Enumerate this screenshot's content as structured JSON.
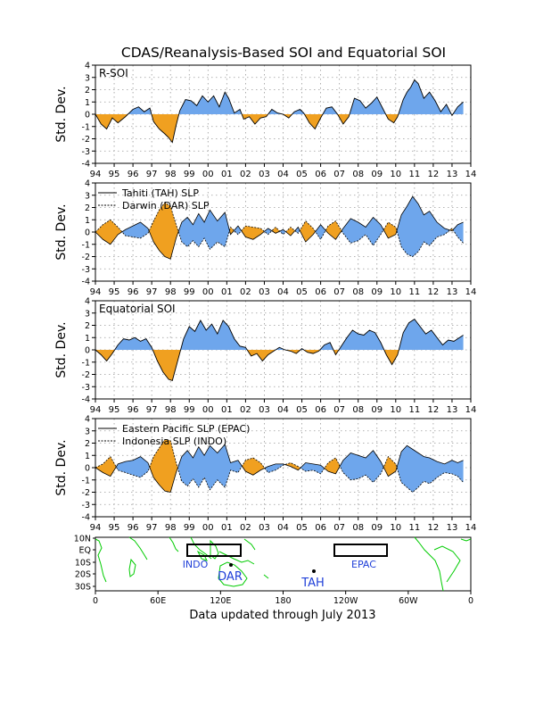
{
  "title": "CDAS/Reanalysis-Based SOI and Equatorial SOI",
  "footer": "Data updated through July 2013",
  "colors": {
    "positive": "#6ea6ec",
    "negative": "#f0a020",
    "grid": "#9a9a9a",
    "land": "#00cc00",
    "label_blue": "#1f3fd8"
  },
  "chart_data": [
    {
      "type": "area",
      "panel_label": "R-SOI",
      "ylabel": "Std. Dev.",
      "yticks": [
        "4",
        "3",
        "2",
        "1",
        "0",
        "-1",
        "-2",
        "-3",
        "-4"
      ],
      "xticks": [
        "94",
        "95",
        "96",
        "97",
        "98",
        "99",
        "00",
        "01",
        "02",
        "03",
        "04",
        "05",
        "06",
        "07",
        "08",
        "09",
        "10",
        "11",
        "12",
        "13",
        "14"
      ],
      "xlim": [
        1994,
        2014
      ],
      "ylim": [
        -4,
        4
      ],
      "grid": true,
      "series": [
        {
          "x": [
            1994.0,
            1994.3,
            1994.6,
            1994.9,
            1995.2,
            1995.6,
            1996.0,
            1996.3,
            1996.6,
            1996.9,
            1997.1,
            1997.4,
            1997.7,
            1997.9,
            1998.1,
            1998.3,
            1998.5,
            1998.8,
            1999.1,
            1999.4,
            1999.7,
            2000.0,
            2000.3,
            2000.6,
            2000.9,
            2001.1,
            2001.4,
            2001.7,
            2001.9,
            2002.2,
            2002.5,
            2002.8,
            2003.1,
            2003.4,
            2003.7,
            2004.0,
            2004.3,
            2004.6,
            2004.9,
            2005.1,
            2005.4,
            2005.7,
            2006.0,
            2006.3,
            2006.6,
            2006.9,
            2007.2,
            2007.5,
            2007.8,
            2008.1,
            2008.4,
            2008.7,
            2009.0,
            2009.3,
            2009.6,
            2009.9,
            2010.1,
            2010.4,
            2010.6,
            2010.8,
            2011.0,
            2011.2,
            2011.5,
            2011.8,
            2012.1,
            2012.4,
            2012.7,
            2013.0,
            2013.3,
            2013.6
          ],
          "y": [
            0,
            -0.8,
            -1.2,
            -0.3,
            -0.7,
            -0.2,
            0.4,
            0.6,
            0.2,
            0.5,
            -0.6,
            -1.2,
            -1.6,
            -1.9,
            -2.3,
            -0.9,
            0.3,
            1.2,
            1.1,
            0.7,
            1.5,
            1.0,
            1.5,
            0.6,
            1.8,
            1.3,
            0.1,
            0.4,
            -0.4,
            -0.2,
            -0.8,
            -0.3,
            -0.2,
            0.4,
            0.1,
            0,
            -0.3,
            0.2,
            0.4,
            0.1,
            -0.7,
            -1.2,
            -0.3,
            0.5,
            0.6,
            0.0,
            -0.8,
            -0.2,
            1.3,
            1.1,
            0.5,
            0.9,
            1.4,
            0.5,
            -0.4,
            -0.7,
            -0.2,
            1.2,
            1.8,
            2.2,
            2.8,
            2.5,
            1.3,
            1.8,
            1.1,
            0.2,
            0.8,
            -0.1,
            0.6,
            1.0
          ]
        }
      ]
    },
    {
      "type": "line",
      "ylabel": "Std. Dev.",
      "yticks": [
        "4",
        "3",
        "2",
        "1",
        "0",
        "-1",
        "-2",
        "-3",
        "-4"
      ],
      "xticks": [
        "94",
        "95",
        "96",
        "97",
        "98",
        "99",
        "00",
        "01",
        "02",
        "03",
        "04",
        "05",
        "06",
        "07",
        "08",
        "09",
        "10",
        "11",
        "12",
        "13",
        "14"
      ],
      "xlim": [
        1994,
        2014
      ],
      "ylim": [
        -4,
        4
      ],
      "grid": true,
      "legend": "top-left",
      "series": [
        {
          "name": "Tahiti (TAH) SLP",
          "style": "solid",
          "x": [
            1994.0,
            1994.4,
            1994.8,
            1995.2,
            1995.6,
            1996.0,
            1996.4,
            1996.8,
            1997.1,
            1997.4,
            1997.7,
            1998.0,
            1998.3,
            1998.6,
            1998.9,
            1999.2,
            1999.5,
            1999.8,
            2000.1,
            2000.5,
            2000.9,
            2001.2,
            2001.6,
            2002.0,
            2002.4,
            2002.8,
            2003.2,
            2003.6,
            2004.0,
            2004.4,
            2004.8,
            2005.2,
            2005.6,
            2006.0,
            2006.4,
            2006.8,
            2007.2,
            2007.6,
            2008.0,
            2008.4,
            2008.8,
            2009.2,
            2009.6,
            2010.0,
            2010.3,
            2010.6,
            2010.9,
            2011.2,
            2011.5,
            2011.8,
            2012.2,
            2012.6,
            2013.0,
            2013.3,
            2013.6
          ],
          "y": [
            0,
            -0.6,
            -1.0,
            -0.2,
            0.2,
            0.5,
            0.8,
            0.3,
            -0.8,
            -1.5,
            -2.0,
            -2.2,
            -0.5,
            0.8,
            1.2,
            0.6,
            1.5,
            0.8,
            1.8,
            0.9,
            1.6,
            -0.2,
            0.5,
            -0.4,
            -0.6,
            -0.2,
            0.3,
            -0.1,
            0.2,
            -0.3,
            0.4,
            -0.8,
            -0.2,
            0.6,
            -0.1,
            -0.6,
            0.3,
            1.1,
            0.8,
            0.4,
            1.2,
            0.6,
            -0.5,
            -0.2,
            1.4,
            2.1,
            2.9,
            2.3,
            1.4,
            1.7,
            0.8,
            0.3,
            0.1,
            0.6,
            0.8
          ]
        },
        {
          "name": "Darwin (DAR) SLP",
          "style": "dotted",
          "x": [
            1994.0,
            1994.4,
            1994.8,
            1995.2,
            1995.6,
            1996.0,
            1996.4,
            1996.8,
            1997.1,
            1997.4,
            1997.7,
            1998.0,
            1998.3,
            1998.6,
            1998.9,
            1999.2,
            1999.5,
            1999.8,
            2000.1,
            2000.5,
            2000.9,
            2001.2,
            2001.6,
            2002.0,
            2002.4,
            2002.8,
            2003.2,
            2003.6,
            2004.0,
            2004.4,
            2004.8,
            2005.2,
            2005.6,
            2006.0,
            2006.4,
            2006.8,
            2007.2,
            2007.6,
            2008.0,
            2008.4,
            2008.8,
            2009.2,
            2009.6,
            2010.0,
            2010.3,
            2010.6,
            2010.9,
            2011.2,
            2011.5,
            2011.8,
            2012.2,
            2012.6,
            2013.0,
            2013.3,
            2013.6
          ],
          "y": [
            0,
            0.6,
            1.0,
            0.4,
            -0.3,
            -0.4,
            -0.5,
            -0.1,
            0.9,
            1.8,
            2.4,
            2.1,
            0.6,
            -0.8,
            -1.2,
            -0.7,
            -1.2,
            -0.5,
            -1.4,
            -0.8,
            -1.2,
            0.4,
            -0.2,
            0.5,
            0.4,
            0.3,
            -0.2,
            0.4,
            -0.2,
            0.4,
            -0.1,
            0.9,
            0.3,
            -0.6,
            0.5,
            0.9,
            -0.1,
            -0.9,
            -0.7,
            -0.2,
            -1.1,
            -0.2,
            0.8,
            0.4,
            -1.2,
            -1.8,
            -2.0,
            -1.6,
            -0.8,
            -1.1,
            -0.4,
            -0.2,
            0.3,
            -0.4,
            -0.9
          ]
        }
      ]
    },
    {
      "type": "area",
      "panel_label": "Equatorial SOI",
      "ylabel": "Std. Dev.",
      "yticks": [
        "4",
        "3",
        "2",
        "1",
        "0",
        "-1",
        "-2",
        "-3",
        "-4"
      ],
      "xticks": [
        "94",
        "95",
        "96",
        "97",
        "98",
        "99",
        "00",
        "01",
        "02",
        "03",
        "04",
        "05",
        "06",
        "07",
        "08",
        "09",
        "10",
        "11",
        "12",
        "13",
        "14"
      ],
      "xlim": [
        1994,
        2014
      ],
      "ylim": [
        -4,
        4
      ],
      "grid": true,
      "series": [
        {
          "x": [
            1994.0,
            1994.3,
            1994.6,
            1994.9,
            1995.2,
            1995.5,
            1995.8,
            1996.1,
            1996.4,
            1996.7,
            1997.0,
            1997.3,
            1997.6,
            1997.9,
            1998.1,
            1998.4,
            1998.7,
            1999.0,
            1999.3,
            1999.6,
            1999.9,
            2000.2,
            2000.5,
            2000.8,
            2001.1,
            2001.4,
            2001.7,
            2002.0,
            2002.3,
            2002.6,
            2002.9,
            2003.2,
            2003.5,
            2003.8,
            2004.1,
            2004.4,
            2004.7,
            2005.0,
            2005.3,
            2005.6,
            2005.9,
            2006.2,
            2006.5,
            2006.8,
            2007.1,
            2007.4,
            2007.7,
            2008.0,
            2008.3,
            2008.6,
            2008.9,
            2009.2,
            2009.5,
            2009.8,
            2010.1,
            2010.4,
            2010.7,
            2011.0,
            2011.3,
            2011.6,
            2011.9,
            2012.2,
            2012.5,
            2012.8,
            2013.1,
            2013.4,
            2013.6
          ],
          "y": [
            0,
            -0.4,
            -0.9,
            -0.3,
            0.4,
            0.9,
            0.8,
            1.0,
            0.7,
            0.9,
            0.2,
            -0.9,
            -1.8,
            -2.4,
            -2.5,
            -0.8,
            0.9,
            1.9,
            1.5,
            2.4,
            1.6,
            2.1,
            1.3,
            2.4,
            1.9,
            0.9,
            0.3,
            0.2,
            -0.5,
            -0.3,
            -0.9,
            -0.4,
            -0.1,
            0.2,
            0.0,
            -0.1,
            -0.3,
            0.1,
            -0.2,
            -0.3,
            -0.1,
            0.4,
            0.6,
            -0.4,
            0.3,
            1.0,
            1.6,
            1.3,
            1.2,
            1.6,
            1.4,
            0.6,
            -0.4,
            -1.2,
            -0.4,
            1.4,
            2.2,
            2.5,
            1.9,
            1.3,
            1.6,
            1.0,
            0.4,
            0.8,
            0.7,
            1.0,
            1.2
          ]
        }
      ]
    },
    {
      "type": "line",
      "ylabel": "Std. Dev.",
      "yticks": [
        "4",
        "3",
        "2",
        "1",
        "0",
        "-1",
        "-2",
        "-3",
        "-4"
      ],
      "xticks": [
        "94",
        "95",
        "96",
        "97",
        "98",
        "99",
        "00",
        "01",
        "02",
        "03",
        "04",
        "05",
        "06",
        "07",
        "08",
        "09",
        "10",
        "11",
        "12",
        "13",
        "14"
      ],
      "xlim": [
        1994,
        2014
      ],
      "ylim": [
        -4,
        4
      ],
      "grid": true,
      "legend": "top-left",
      "series": [
        {
          "name": "Eastern Pacific SLP (EPAC)",
          "style": "solid",
          "x": [
            1994.0,
            1994.4,
            1994.8,
            1995.2,
            1995.6,
            1996.0,
            1996.4,
            1996.8,
            1997.1,
            1997.4,
            1997.7,
            1998.0,
            1998.3,
            1998.6,
            1998.9,
            1999.2,
            1999.5,
            1999.8,
            2000.1,
            2000.5,
            2000.9,
            2001.2,
            2001.6,
            2002.0,
            2002.4,
            2002.8,
            2003.2,
            2003.6,
            2004.0,
            2004.4,
            2004.8,
            2005.2,
            2005.6,
            2006.0,
            2006.4,
            2006.8,
            2007.2,
            2007.6,
            2008.0,
            2008.4,
            2008.8,
            2009.2,
            2009.6,
            2010.0,
            2010.3,
            2010.6,
            2010.9,
            2011.2,
            2011.5,
            2011.8,
            2012.2,
            2012.6,
            2013.0,
            2013.3,
            2013.6
          ],
          "y": [
            0,
            -0.4,
            -0.7,
            0.3,
            0.5,
            0.6,
            0.9,
            0.4,
            -0.8,
            -1.4,
            -1.9,
            -2.0,
            -0.4,
            0.9,
            1.4,
            0.8,
            1.7,
            1.0,
            1.8,
            1.2,
            1.9,
            0.4,
            0.6,
            -0.3,
            -0.6,
            -0.2,
            0.1,
            0.3,
            0.3,
            0.1,
            -0.2,
            0.4,
            0.3,
            0.2,
            -0.3,
            -0.5,
            0.6,
            1.2,
            1.0,
            0.8,
            1.4,
            0.5,
            -0.7,
            -0.3,
            1.3,
            1.8,
            1.5,
            1.2,
            0.9,
            0.8,
            0.5,
            0.3,
            0.6,
            0.4,
            0.6
          ]
        },
        {
          "name": "Indonesia SLP (INDO)",
          "style": "dotted",
          "x": [
            1994.0,
            1994.4,
            1994.8,
            1995.2,
            1995.6,
            1996.0,
            1996.4,
            1996.8,
            1997.1,
            1997.4,
            1997.7,
            1998.0,
            1998.3,
            1998.6,
            1998.9,
            1999.2,
            1999.5,
            1999.8,
            2000.1,
            2000.5,
            2000.9,
            2001.2,
            2001.6,
            2002.0,
            2002.4,
            2002.8,
            2003.2,
            2003.6,
            2004.0,
            2004.4,
            2004.8,
            2005.2,
            2005.6,
            2006.0,
            2006.4,
            2006.8,
            2007.2,
            2007.6,
            2008.0,
            2008.4,
            2008.8,
            2009.2,
            2009.6,
            2010.0,
            2010.3,
            2010.6,
            2010.9,
            2011.2,
            2011.5,
            2011.8,
            2012.2,
            2012.6,
            2013.0,
            2013.3,
            2013.6
          ],
          "y": [
            0,
            0.3,
            0.9,
            -0.2,
            -0.4,
            -0.6,
            -0.8,
            -0.3,
            0.9,
            1.6,
            2.3,
            2.2,
            0.4,
            -1.1,
            -1.5,
            -0.9,
            -1.6,
            -0.8,
            -1.8,
            -1.0,
            -1.6,
            -0.2,
            -0.4,
            0.6,
            0.8,
            0.4,
            -0.4,
            -0.2,
            0.2,
            0.4,
            0.1,
            -0.3,
            -0.2,
            -0.5,
            0.4,
            0.8,
            -0.4,
            -1.0,
            -0.9,
            -0.6,
            -1.2,
            -0.5,
            0.9,
            0.3,
            -1.2,
            -1.6,
            -2.0,
            -1.6,
            -1.1,
            -1.3,
            -0.8,
            -0.4,
            -0.5,
            -0.7,
            -1.2
          ]
        }
      ]
    }
  ],
  "map": {
    "lat_labels": [
      "10N",
      "EQ",
      "10S",
      "20S",
      "30S"
    ],
    "lon_labels": [
      "0",
      "60E",
      "120E",
      "180",
      "120W",
      "60W",
      "0"
    ],
    "boxes": [
      {
        "label": "INDO"
      },
      {
        "label": "EPAC"
      }
    ],
    "stations": [
      {
        "label": "DAR"
      },
      {
        "label": "TAH"
      }
    ]
  }
}
